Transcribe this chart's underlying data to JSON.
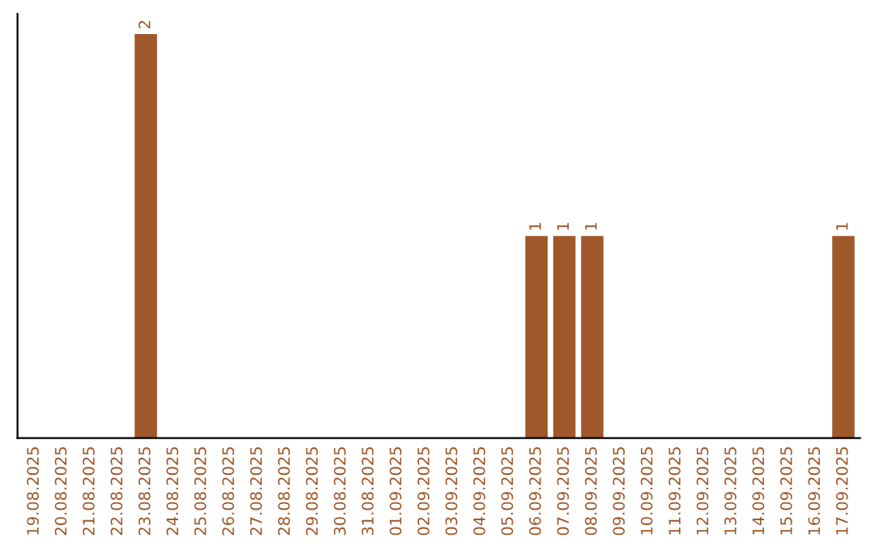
{
  "chart_data": {
    "type": "bar",
    "categories": [
      "19.08.2025",
      "20.08.2025",
      "21.08.2025",
      "22.08.2025",
      "23.08.2025",
      "24.08.2025",
      "25.08.2025",
      "26.08.2025",
      "27.08.2025",
      "28.08.2025",
      "29.08.2025",
      "30.08.2025",
      "31.08.2025",
      "01.09.2025",
      "02.09.2025",
      "03.09.2025",
      "04.09.2025",
      "05.09.2025",
      "06.09.2025",
      "07.09.2025",
      "08.09.2025",
      "09.09.2025",
      "10.09.2025",
      "11.09.2025",
      "12.09.2025",
      "13.09.2025",
      "14.09.2025",
      "15.09.2025",
      "16.09.2025",
      "17.09.2025"
    ],
    "values": [
      0,
      0,
      0,
      0,
      2,
      0,
      0,
      0,
      0,
      0,
      0,
      0,
      0,
      0,
      0,
      0,
      0,
      0,
      1,
      1,
      1,
      0,
      0,
      0,
      0,
      0,
      0,
      0,
      0,
      1
    ],
    "color": "#a0572a",
    "value_labels": [
      null,
      null,
      null,
      null,
      "2",
      null,
      null,
      null,
      null,
      null,
      null,
      null,
      null,
      null,
      null,
      null,
      null,
      null,
      "1",
      "1",
      "1",
      null,
      null,
      null,
      null,
      null,
      null,
      null,
      null,
      "1"
    ],
    "tick_labels": "x",
    "grid": false,
    "legend": false
  }
}
